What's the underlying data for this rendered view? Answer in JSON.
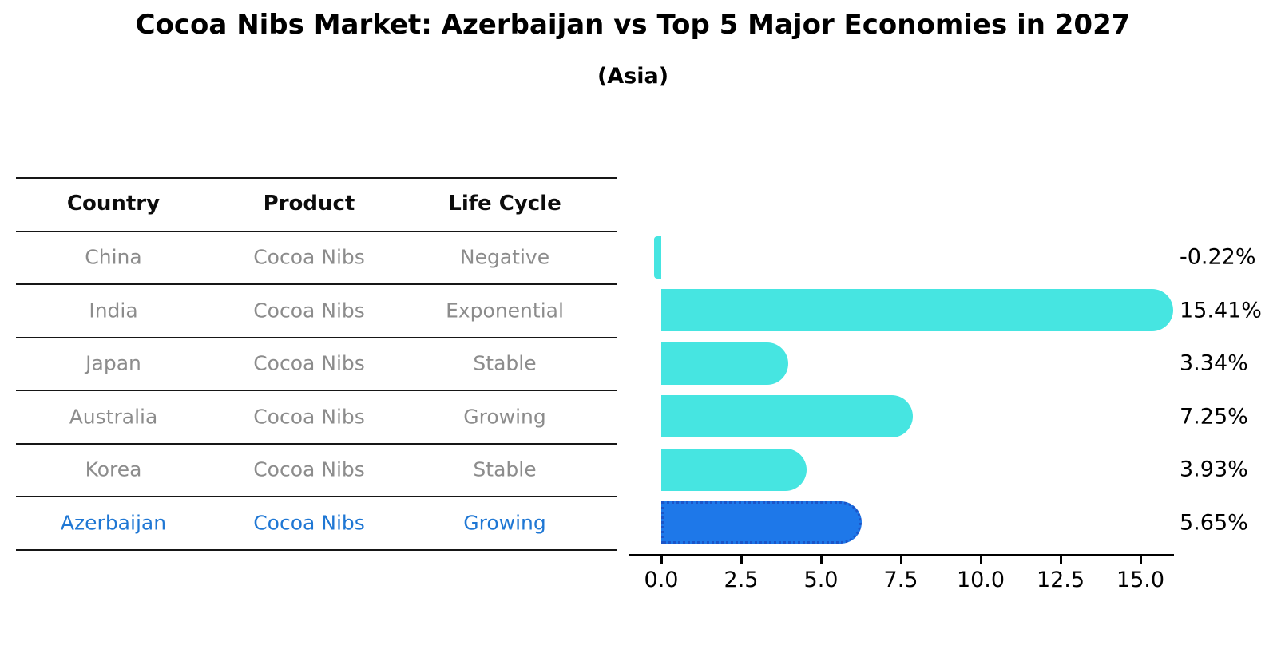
{
  "page": {
    "title": "Cocoa Nibs Market: Azerbaijan vs Top 5 Major Economies in 2027",
    "subtitle": "(Asia)"
  },
  "table": {
    "columns": [
      "Country",
      "Product",
      "Life Cycle"
    ],
    "rows": [
      {
        "country": "China",
        "product": "Cocoa Nibs",
        "life_cycle": "Negative",
        "highlighted": false
      },
      {
        "country": "India",
        "product": "Cocoa Nibs",
        "life_cycle": "Exponential",
        "highlighted": false
      },
      {
        "country": "Japan",
        "product": "Cocoa Nibs",
        "life_cycle": "Stable",
        "highlighted": false
      },
      {
        "country": "Australia",
        "product": "Cocoa Nibs",
        "life_cycle": "Growing",
        "highlighted": false
      },
      {
        "country": "Korea",
        "product": "Cocoa Nibs",
        "life_cycle": "Stable",
        "highlighted": false
      },
      {
        "country": "Azerbaijan",
        "product": "Cocoa Nibs",
        "life_cycle": "Growing",
        "highlighted": true
      }
    ]
  },
  "chart_data": {
    "type": "bar",
    "orientation": "horizontal",
    "title": "Cocoa Nibs Market: Azerbaijan vs Top 5 Major Economies in 2027",
    "subtitle": "(Asia)",
    "categories": [
      "China",
      "India",
      "Japan",
      "Australia",
      "Korea",
      "Azerbaijan"
    ],
    "values": [
      -0.22,
      15.41,
      3.34,
      7.25,
      3.93,
      5.65
    ],
    "value_labels": [
      "-0.22%",
      "15.41%",
      "3.34%",
      "7.25%",
      "3.93%",
      "5.65%"
    ],
    "x_tick_values": [
      0.0,
      2.5,
      5.0,
      7.5,
      10.0,
      12.5,
      15.0
    ],
    "x_tick_labels": [
      "0.0",
      "2.5",
      "5.0",
      "7.5",
      "10.0",
      "12.5",
      "15.0"
    ],
    "xlim": [
      -1.0,
      16.1
    ],
    "grid": false,
    "legend": "none",
    "highlight_index": 5,
    "xlabel": "",
    "ylabel": ""
  },
  "colors": {
    "bar": "#46e5e1",
    "highlight_bar": "#1e78e9",
    "highlight_border": "#1c55c8",
    "highlight_text": "#1f77d4",
    "table_text": "#8c8c8c",
    "header_text": "#0c0c0c",
    "axis": "#000000",
    "value_label": "#000000"
  }
}
